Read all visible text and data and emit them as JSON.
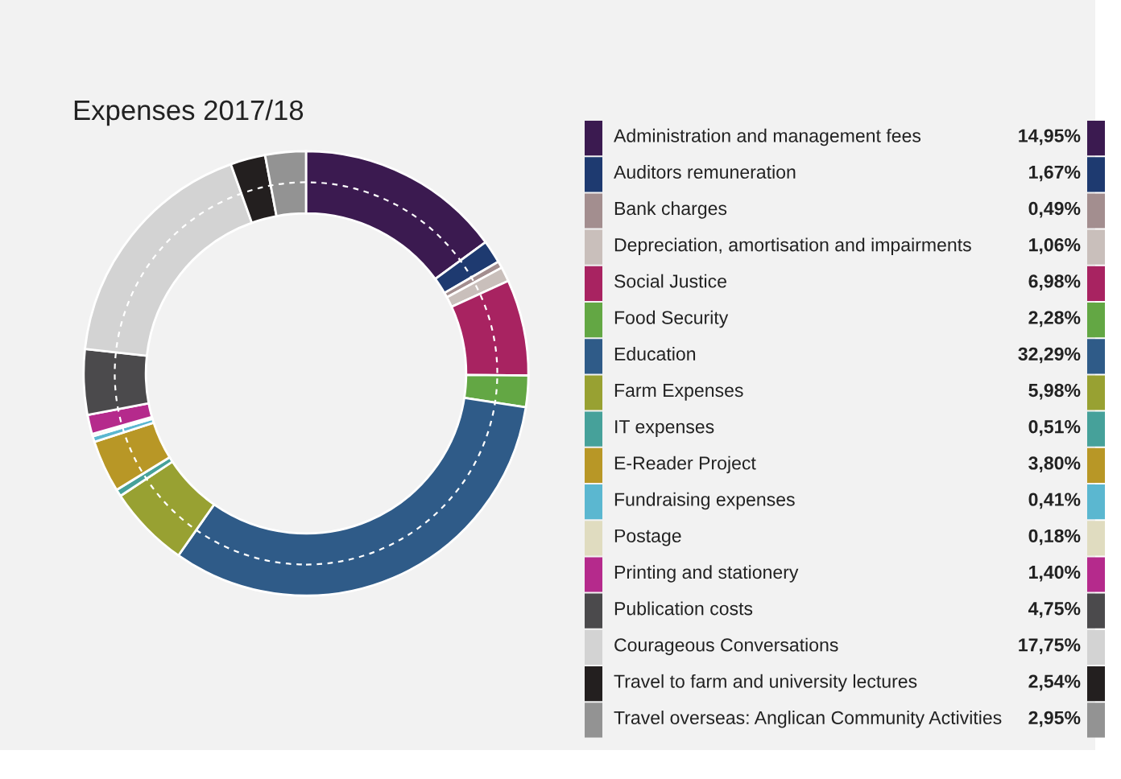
{
  "chart_data": {
    "type": "donut",
    "title": "Expenses 2017/18",
    "categories": [
      "Administration and management fees",
      "Auditors remuneration",
      "Bank charges",
      "Depreciation, amortisation and impairments",
      "Social Justice",
      "Food Security",
      "Education",
      "Farm Expenses",
      "IT expenses",
      "E-Reader Project",
      "Fundraising expenses",
      "Postage",
      "Printing and stationery",
      "Publication costs",
      "Courageous Conversations",
      "Travel to farm and university lectures",
      "Travel overseas: Anglican Community Activities"
    ],
    "values": [
      14.95,
      1.67,
      0.49,
      1.06,
      6.98,
      2.28,
      32.29,
      5.98,
      0.51,
      3.8,
      0.41,
      0.18,
      1.4,
      4.75,
      17.75,
      2.54,
      2.95
    ],
    "value_labels": [
      "14,95%",
      "1,67%",
      "0,49%",
      "1,06%",
      "6,98%",
      "2,28%",
      "32,29%",
      "5,98%",
      "0,51%",
      "3,80%",
      "0,41%",
      "0,18%",
      "1,40%",
      "4,75%",
      "17,75%",
      "2,54%",
      "2,95%"
    ],
    "colors": [
      "#3b1a50",
      "#1e3a70",
      "#a38e8f",
      "#c9bfbb",
      "#a82361",
      "#63a744",
      "#2f5b88",
      "#98a132",
      "#46a19a",
      "#b89726",
      "#5bb7d0",
      "#e0dcc0",
      "#b52a8c",
      "#4b4a4c",
      "#d3d3d3",
      "#231f1f",
      "#939393"
    ],
    "legend": "right"
  }
}
